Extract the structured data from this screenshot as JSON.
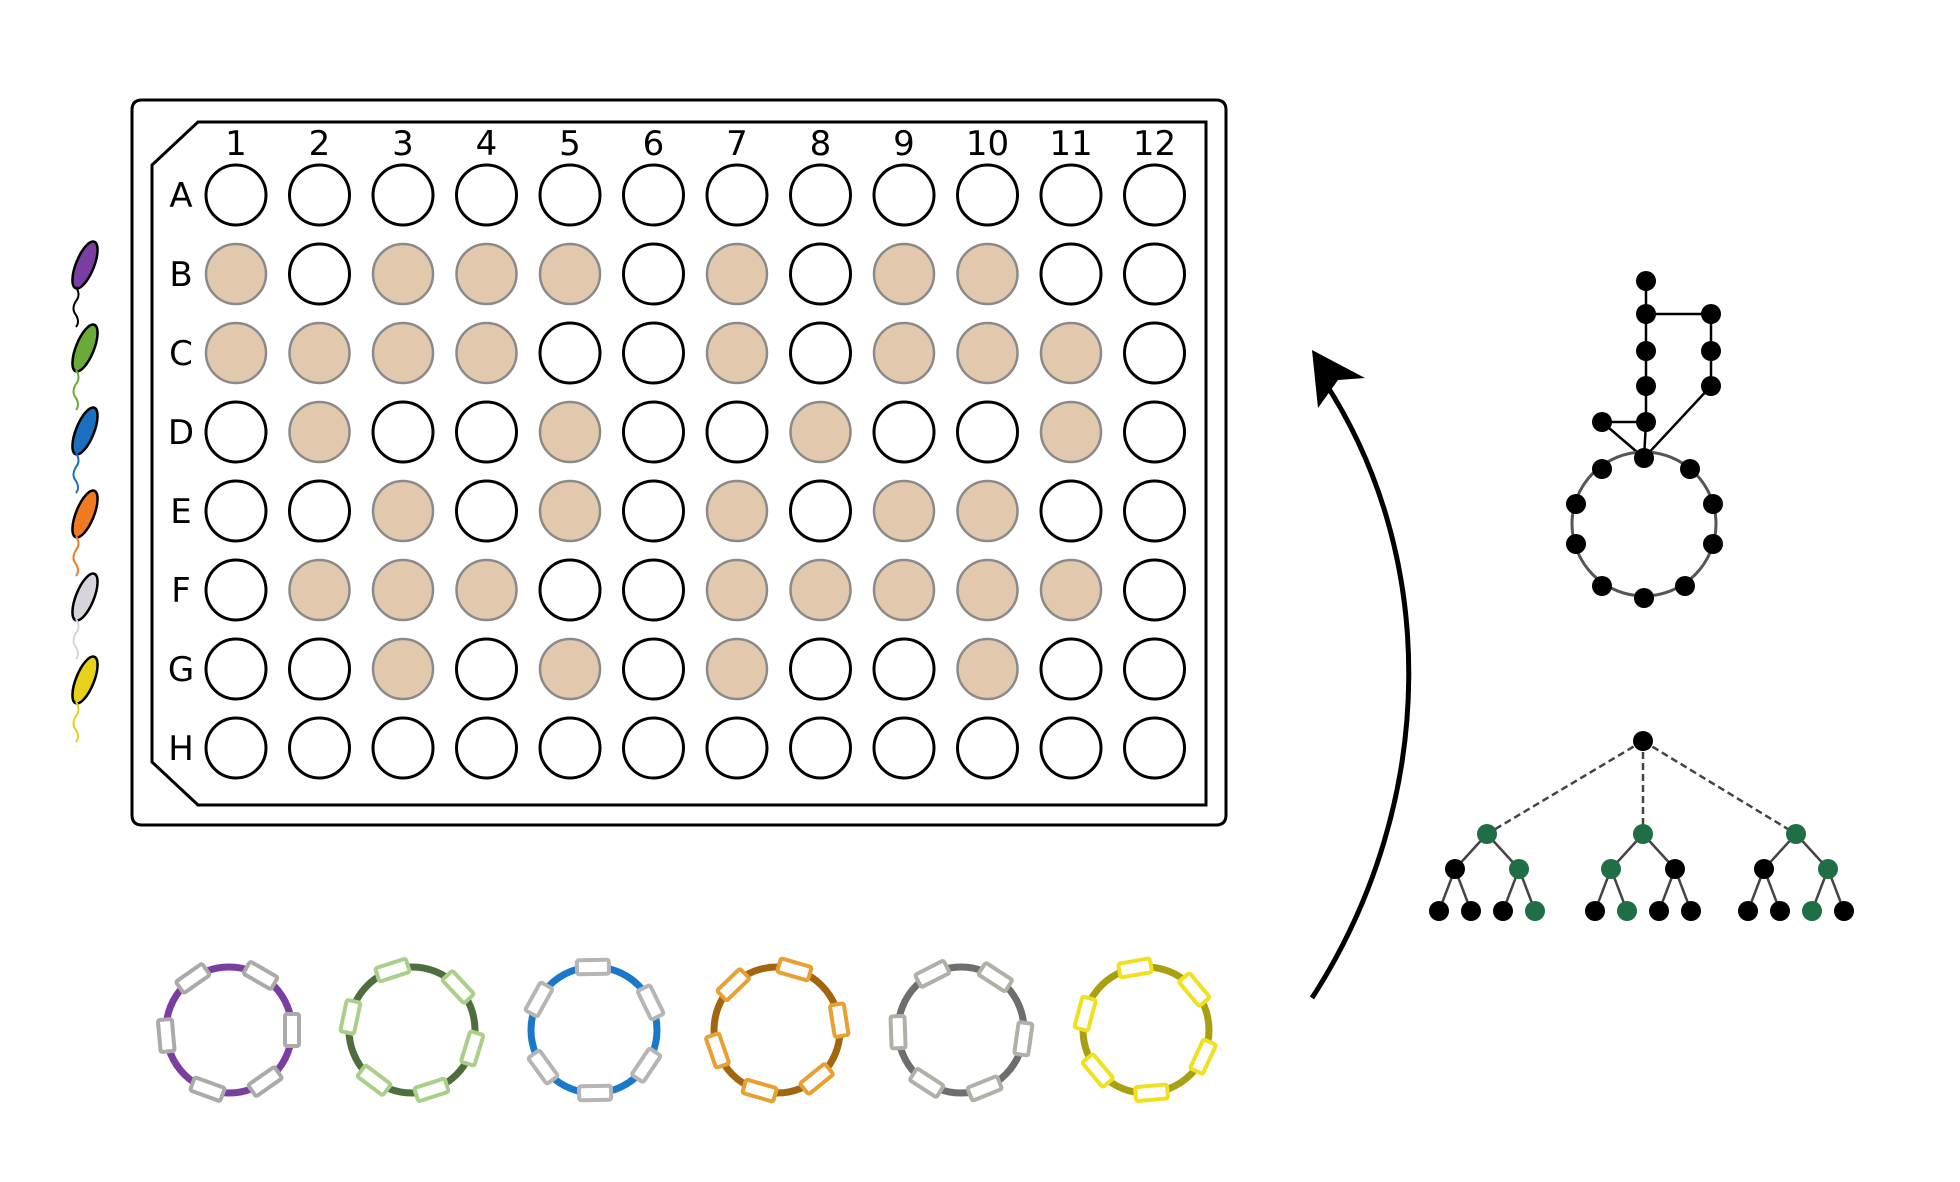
{
  "plate": {
    "columns": [
      "1",
      "2",
      "3",
      "4",
      "5",
      "6",
      "7",
      "8",
      "9",
      "10",
      "11",
      "12"
    ],
    "rows": [
      "A",
      "B",
      "C",
      "D",
      "E",
      "F",
      "G",
      "H"
    ],
    "filled": {
      "A": [],
      "B": [
        1,
        3,
        4,
        5,
        7,
        9,
        10
      ],
      "C": [
        1,
        2,
        3,
        4,
        7,
        9,
        10,
        11
      ],
      "D": [
        2,
        5,
        8,
        11
      ],
      "E": [
        3,
        5,
        7,
        9,
        10
      ],
      "F": [
        2,
        3,
        4,
        7,
        8,
        9,
        10,
        11
      ],
      "G": [
        3,
        5,
        7,
        10
      ],
      "H": []
    },
    "fill_color": "#e2c9ae",
    "fill_stroke": "#8a8a8a",
    "empty_stroke": "#000000"
  },
  "strains": {
    "colors": [
      "#7a3ea0",
      "#6aaa3a",
      "#1a6fc0",
      "#f07a20",
      "#d8d4dc",
      "#e6d21a"
    ]
  },
  "plasmids": [
    {
      "name": "purple-plasmid",
      "ring": "#7a3ea0",
      "segments": "#aaaaaa"
    },
    {
      "name": "green-plasmid",
      "ring": "#4e6e3e",
      "segments": "#a9cf8a"
    },
    {
      "name": "blue-plasmid",
      "ring": "#1a78c8",
      "segments": "#b5b5b5"
    },
    {
      "name": "orange-plasmid",
      "ring": "#a2660f",
      "segments": "#e8a030"
    },
    {
      "name": "gray-plasmid",
      "ring": "#6e6e6e",
      "segments": "#b0b0a8"
    },
    {
      "name": "yellow-plasmid",
      "ring": "#a8a010",
      "segments": "#f0e020"
    }
  ],
  "network_colors": {
    "node": "#000000",
    "edge": "#555555",
    "highlight": "#1f6e45"
  }
}
